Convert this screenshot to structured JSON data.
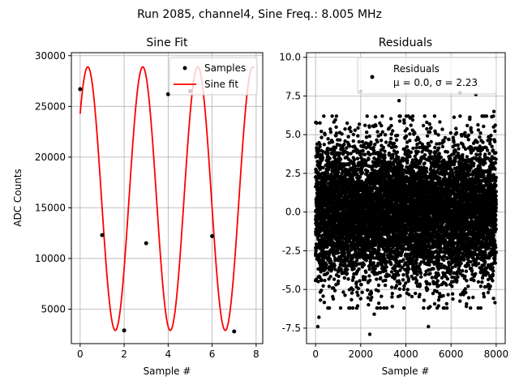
{
  "suptitle": "Run 2085, channel4, Sine Freq.: 8.005 MHz",
  "colors": {
    "samples": "#000000",
    "fit": "#ff0000",
    "residuals": "#000000",
    "grid": "#b0b0b0"
  },
  "chart_data": [
    {
      "type": "line",
      "title": "Sine Fit",
      "xlabel": "Sample #",
      "ylabel": "ADC Counts",
      "xlim": [
        -0.4,
        8.3
      ],
      "ylim": [
        1600,
        30300
      ],
      "xticks": [
        0,
        2,
        4,
        6,
        8
      ],
      "yticks": [
        5000,
        10000,
        15000,
        20000,
        25000,
        30000
      ],
      "grid": true,
      "legend_position": "top-right",
      "series": [
        {
          "name": "Samples",
          "style": "points",
          "x": [
            0,
            1,
            2,
            3,
            4,
            5,
            6,
            7
          ],
          "y": [
            26700,
            12300,
            2900,
            11500,
            26200,
            26500,
            12200,
            2800
          ]
        },
        {
          "name": "Sine fit",
          "style": "line",
          "function": {
            "offset": 15900,
            "amplitude": 13000,
            "period": 2.5,
            "phase": 0.87,
            "x_start": 0,
            "x_end": 7.9
          }
        }
      ]
    },
    {
      "type": "scatter",
      "title": "Residuals",
      "xlabel": "Sample #",
      "ylabel": "",
      "xlim": [
        -400,
        8400
      ],
      "ylim": [
        -8.5,
        10.3
      ],
      "xticks": [
        0,
        2000,
        4000,
        6000,
        8000
      ],
      "yticks": [
        -7.5,
        -5.0,
        -2.5,
        0.0,
        2.5,
        5.0,
        7.5,
        10.0
      ],
      "grid": true,
      "legend_position": "top-right",
      "legend": {
        "label": "Residuals",
        "stats": "μ = 0.0, σ = 2.23"
      },
      "series": [
        {
          "name": "Residuals",
          "style": "points",
          "count": 8000,
          "x_range": [
            0,
            7999
          ],
          "mean": 0.0,
          "std": 2.23
        }
      ],
      "outliers": [
        {
          "x": 2000,
          "y": 7.8
        },
        {
          "x": 3700,
          "y": 7.2
        },
        {
          "x": 6400,
          "y": 7.7
        },
        {
          "x": 7100,
          "y": 7.6
        },
        {
          "x": 7900,
          "y": 6.5
        },
        {
          "x": 100,
          "y": -7.4
        },
        {
          "x": 150,
          "y": -6.8
        },
        {
          "x": 2400,
          "y": -7.9
        },
        {
          "x": 5000,
          "y": -7.4
        },
        {
          "x": 2600,
          "y": -6.6
        },
        {
          "x": 4200,
          "y": 6.1
        },
        {
          "x": 3400,
          "y": -6.1
        }
      ]
    }
  ]
}
